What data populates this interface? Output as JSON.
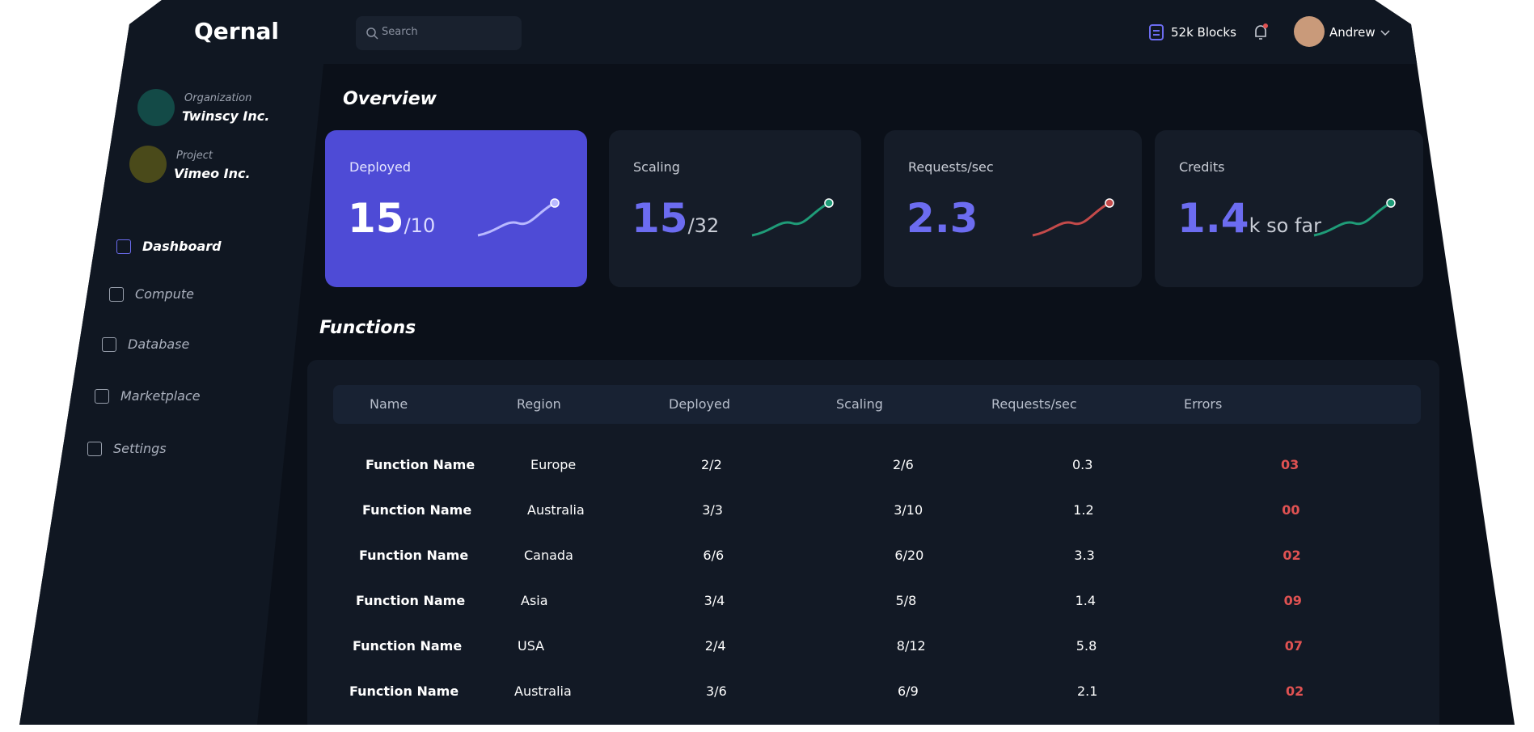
{
  "header": {
    "logo": "Qernal",
    "search": "Search",
    "blocks": "52k Blocks",
    "user": "Andrew"
  },
  "sidebar": {
    "organization": {
      "label": "Organization",
      "name": "Twinscy Inc."
    },
    "project": {
      "label": "Project",
      "name": "Vimeo Inc."
    },
    "nav": [
      "Dashboard",
      "Compute",
      "Database",
      "Marketplace",
      "Settings"
    ]
  },
  "overview": {
    "title": "Overview",
    "cards": [
      {
        "label": "Deployed",
        "value": "15",
        "suffix": "/10"
      },
      {
        "label": "Scaling",
        "value": "15",
        "suffix": "/32"
      },
      {
        "label": "Requests/sec",
        "value": "2.3",
        "suffix": ""
      },
      {
        "label": "Credits",
        "value": "1.4",
        "suffix": "k so far"
      }
    ]
  },
  "functions": {
    "title": "Functions",
    "columns": [
      "Name",
      "Region",
      "Deployed",
      "Scaling",
      "Requests/sec",
      "Errors"
    ],
    "rows": [
      [
        "Function Name",
        "Europe",
        "2/2",
        "2/6",
        "0.3",
        "03"
      ],
      [
        "Function Name",
        "Australia",
        "3/3",
        "3/10",
        "1.2",
        "00"
      ],
      [
        "Function Name",
        "Canada",
        "6/6",
        "6/20",
        "3.3",
        "02"
      ],
      [
        "Function Name",
        "Asia",
        "3/4",
        "5/8",
        "1.4",
        "09"
      ],
      [
        "Function Name",
        "USA",
        "2/4",
        "8/12",
        "5.8",
        "07"
      ],
      [
        "Function Name",
        "Australia",
        "3/6",
        "6/9",
        "2.1",
        "02"
      ]
    ]
  }
}
